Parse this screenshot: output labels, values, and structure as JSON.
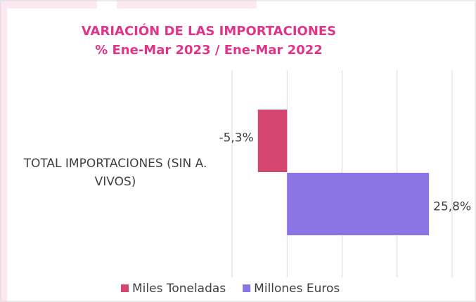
{
  "chart_data": {
    "type": "barh",
    "title": "VARIACIÓN DE LAS IMPORTACIONES",
    "subtitle": "% Ene-Mar 2023 / Ene-Mar 2022",
    "categories": [
      "TOTAL IMPORTACIONES (SIN A. VIVOS)"
    ],
    "series": [
      {
        "name": "Miles Toneladas",
        "color": "#d4466f",
        "values": [
          -5.3
        ],
        "value_labels": [
          "-5,3%"
        ]
      },
      {
        "name": "Millones Euros",
        "color": "#8b74e4",
        "values": [
          25.8
        ],
        "value_labels": [
          "25,8%"
        ]
      }
    ],
    "xlim": [
      -10,
      30
    ],
    "xticks": [
      -10,
      0,
      10,
      20,
      30
    ],
    "grid": true,
    "legend": "bottom"
  }
}
